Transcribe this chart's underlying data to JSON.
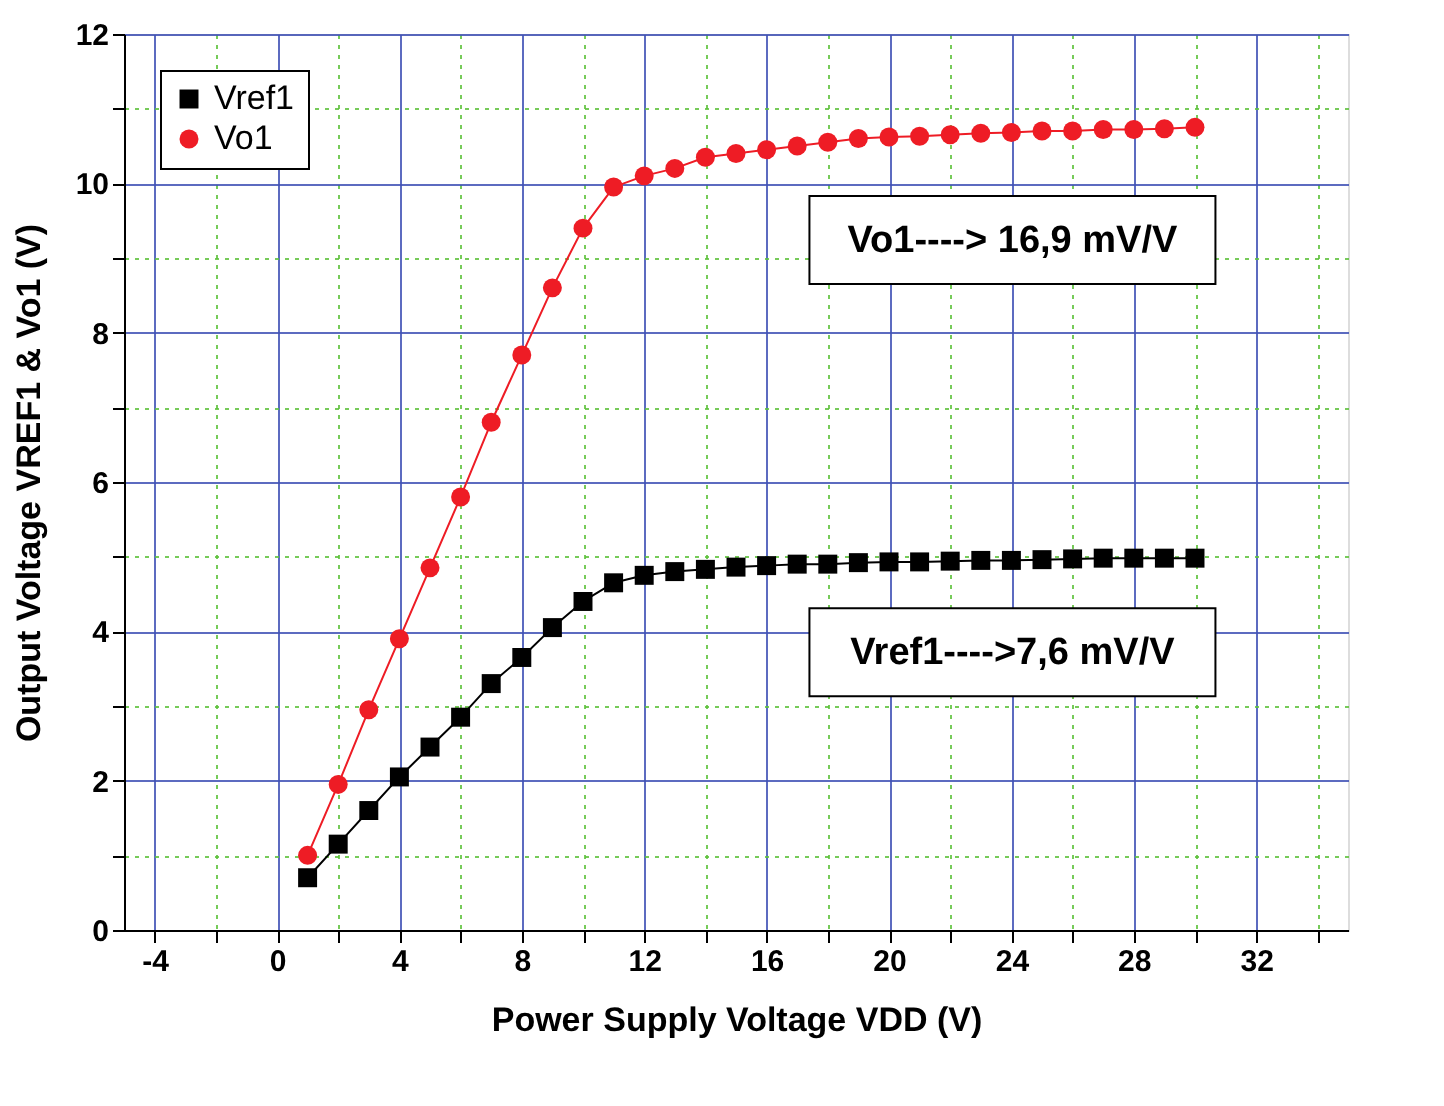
{
  "chart_data": {
    "type": "line",
    "xlabel": "Power Supply Voltage VDD (V)",
    "ylabel": "Output Voltage VREF1 & Vo1 (V)",
    "x": [
      1,
      2,
      3,
      4,
      5,
      6,
      7,
      8,
      9,
      10,
      11,
      12,
      13,
      14,
      15,
      16,
      17,
      18,
      19,
      20,
      21,
      22,
      23,
      24,
      25,
      26,
      27,
      28,
      29,
      30
    ],
    "series": [
      {
        "name": "Vref1",
        "color": "#000000",
        "marker": "square",
        "values": [
          0.7,
          1.15,
          1.6,
          2.05,
          2.45,
          2.85,
          3.3,
          3.65,
          4.05,
          4.4,
          4.65,
          4.75,
          4.8,
          4.83,
          4.86,
          4.88,
          4.9,
          4.9,
          4.92,
          4.93,
          4.93,
          4.94,
          4.95,
          4.95,
          4.96,
          4.97,
          4.98,
          4.98,
          4.98,
          4.98
        ]
      },
      {
        "name": "Vo1",
        "color": "#ee1c25",
        "marker": "circle",
        "values": [
          1.0,
          1.95,
          2.95,
          3.9,
          4.85,
          5.8,
          6.8,
          7.7,
          8.6,
          9.4,
          9.95,
          10.1,
          10.2,
          10.35,
          10.4,
          10.45,
          10.5,
          10.55,
          10.6,
          10.62,
          10.63,
          10.65,
          10.67,
          10.68,
          10.7,
          10.7,
          10.72,
          10.72,
          10.73,
          10.75
        ]
      }
    ],
    "xlim": [
      -5,
      35
    ],
    "xticks": [
      -4,
      {
        "value": -2,
        "label": null
      },
      0,
      {
        "value": 2,
        "label": null
      },
      4,
      {
        "value": 6,
        "label": null
      },
      8,
      {
        "value": 10,
        "label": null
      },
      12,
      {
        "value": 14,
        "label": null
      },
      16,
      {
        "value": 18,
        "label": null
      },
      20,
      {
        "value": 22,
        "label": null
      },
      24,
      {
        "value": 26,
        "label": null
      },
      28,
      {
        "value": 30,
        "label": null
      },
      32,
      {
        "value": 34,
        "label": null
      }
    ],
    "ylim": [
      0,
      12
    ],
    "yticks": [
      0,
      {
        "value": 1,
        "label": null
      },
      2,
      {
        "value": 3,
        "label": null
      },
      4,
      {
        "value": 5,
        "label": null
      },
      6,
      {
        "value": 7,
        "label": null
      },
      8,
      {
        "value": 9,
        "label": null
      },
      10,
      {
        "value": 11,
        "label": null
      },
      12
    ],
    "grid": true,
    "legend": "top left",
    "line_style": "solid",
    "annotations": [
      "Vo1----> 16,9 mV/V",
      "Vref1---->7,6 mV/V"
    ]
  }
}
